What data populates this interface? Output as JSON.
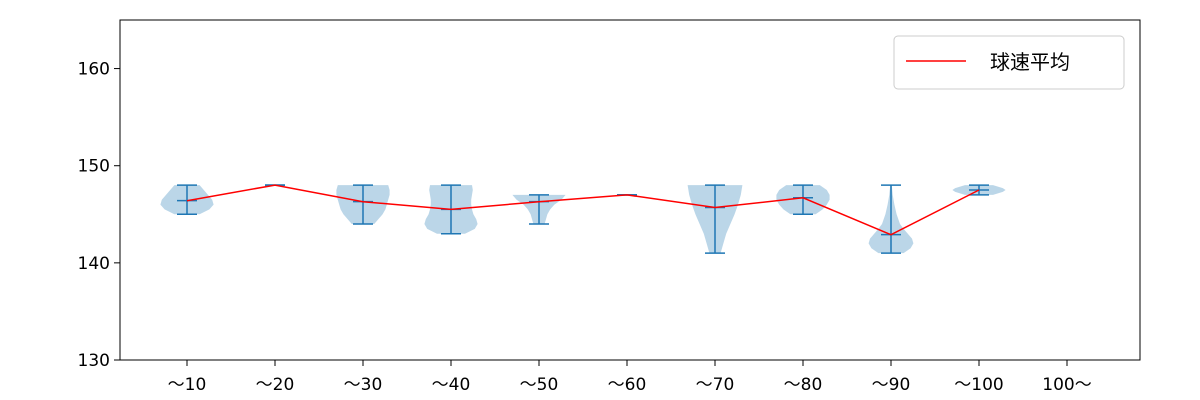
{
  "chart_data": {
    "type": "violin",
    "categories": [
      "～10",
      "～20",
      "～30",
      "～40",
      "～50",
      "～60",
      "～70",
      "～80",
      "～90",
      "～100",
      "100～"
    ],
    "ylim": [
      130,
      165
    ],
    "yticks": [
      130,
      140,
      150,
      160
    ],
    "legend": {
      "label": "球速平均",
      "placement": "top-right"
    },
    "colors": {
      "mean_line": "#ff0000",
      "violin_fill": "#1f77b4",
      "violin_alpha": 0.3,
      "whisker": "#1f77b4"
    },
    "series": [
      {
        "name": "球速平均",
        "values": [
          146.4,
          148.0,
          146.3,
          145.5,
          146.3,
          147.0,
          145.7,
          146.7,
          142.9,
          147.5,
          null
        ]
      }
    ],
    "distributions": [
      {
        "min": 145,
        "max": 148,
        "mean": 146.4,
        "profile": [
          [
            145,
            0.45
          ],
          [
            145.5,
            0.8
          ],
          [
            146,
            0.95
          ],
          [
            146.5,
            0.9
          ],
          [
            147,
            0.75
          ],
          [
            147.5,
            0.6
          ],
          [
            148,
            0.45
          ]
        ]
      },
      {
        "min": 148,
        "max": 148,
        "mean": 148.0,
        "profile": []
      },
      {
        "min": 144,
        "max": 148,
        "mean": 146.3,
        "profile": [
          [
            144,
            0.4
          ],
          [
            144.5,
            0.55
          ],
          [
            145,
            0.7
          ],
          [
            145.5,
            0.8
          ],
          [
            146,
            0.85
          ],
          [
            146.5,
            0.9
          ],
          [
            147,
            0.95
          ],
          [
            147.5,
            0.95
          ],
          [
            148,
            0.9
          ]
        ]
      },
      {
        "min": 143,
        "max": 148,
        "mean": 145.5,
        "profile": [
          [
            143,
            0.5
          ],
          [
            143.5,
            0.85
          ],
          [
            144,
            0.95
          ],
          [
            144.5,
            0.9
          ],
          [
            145,
            0.8
          ],
          [
            145.5,
            0.75
          ],
          [
            146,
            0.72
          ],
          [
            146.5,
            0.72
          ],
          [
            147,
            0.75
          ],
          [
            147.5,
            0.78
          ],
          [
            148,
            0.75
          ]
        ]
      },
      {
        "min": 144,
        "max": 147,
        "mean": 146.3,
        "profile": [
          [
            144,
            0.2
          ],
          [
            144.5,
            0.25
          ],
          [
            145,
            0.3
          ],
          [
            145.5,
            0.4
          ],
          [
            146,
            0.55
          ],
          [
            146.5,
            0.8
          ],
          [
            147,
            0.95
          ]
        ]
      },
      {
        "min": 147,
        "max": 147,
        "mean": 147.0,
        "profile": []
      },
      {
        "min": 141,
        "max": 148,
        "mean": 145.7,
        "profile": [
          [
            141,
            0.2
          ],
          [
            142,
            0.3
          ],
          [
            143,
            0.4
          ],
          [
            144,
            0.55
          ],
          [
            145,
            0.7
          ],
          [
            146,
            0.82
          ],
          [
            147,
            0.92
          ],
          [
            148,
            0.98
          ]
        ]
      },
      {
        "min": 145,
        "max": 148,
        "mean": 146.7,
        "profile": [
          [
            145,
            0.45
          ],
          [
            145.5,
            0.7
          ],
          [
            146,
            0.85
          ],
          [
            146.5,
            0.95
          ],
          [
            147,
            0.95
          ],
          [
            147.5,
            0.85
          ],
          [
            148,
            0.6
          ]
        ]
      },
      {
        "min": 141,
        "max": 148,
        "mean": 142.9,
        "profile": [
          [
            141,
            0.45
          ],
          [
            141.5,
            0.7
          ],
          [
            142,
            0.8
          ],
          [
            142.5,
            0.75
          ],
          [
            143,
            0.6
          ],
          [
            143.5,
            0.45
          ],
          [
            144,
            0.32
          ],
          [
            145,
            0.2
          ],
          [
            146,
            0.12
          ],
          [
            147,
            0.06
          ],
          [
            148,
            0.03
          ]
        ]
      },
      {
        "min": 147,
        "max": 148,
        "mean": 147.5,
        "profile": [
          [
            147,
            0.5
          ],
          [
            147.3,
            0.85
          ],
          [
            147.5,
            0.95
          ],
          [
            147.7,
            0.85
          ],
          [
            148,
            0.5
          ]
        ]
      },
      null
    ]
  }
}
